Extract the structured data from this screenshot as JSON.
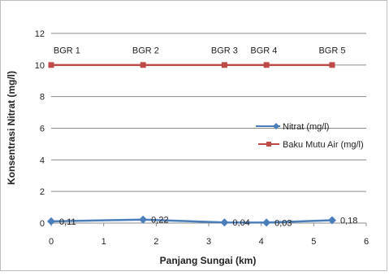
{
  "chart_data": {
    "type": "line",
    "xlabel": "Panjang Sungai (km)",
    "ylabel": "Konsentrasi Nitrat (mg/l)",
    "xlim": [
      0,
      6
    ],
    "ylim": [
      0,
      12
    ],
    "x_ticks": [
      "0",
      "1",
      "2",
      "3",
      "4",
      "5",
      "6"
    ],
    "y_ticks": [
      "0",
      "2",
      "4",
      "6",
      "8",
      "10",
      "12"
    ],
    "grid": "horizontal",
    "legend_position": "right",
    "series": [
      {
        "name": "Nitrat (mg/l)",
        "color": "#4a7ebb",
        "marker": "diamond",
        "x": [
          0,
          1.75,
          3.3,
          4.1,
          5.35
        ],
        "y": [
          0.11,
          0.22,
          0.04,
          0.03,
          0.18
        ],
        "labels": [
          "0,11",
          "0,22",
          "0,04",
          "0,03",
          "0,18"
        ]
      },
      {
        "name": "Baku Mutu Air (mg/l)",
        "color": "#be4b48",
        "marker": "square",
        "x": [
          0,
          1.75,
          3.3,
          4.1,
          5.35
        ],
        "y": [
          10,
          10,
          10,
          10,
          10
        ]
      }
    ],
    "annotations": [
      {
        "text": "BGR 1",
        "x": 0.3,
        "y": 11
      },
      {
        "text": "BGR 2",
        "x": 1.8,
        "y": 11
      },
      {
        "text": "BGR 3",
        "x": 3.3,
        "y": 11
      },
      {
        "text": "BGR 4",
        "x": 4.05,
        "y": 11
      },
      {
        "text": "BGR 5",
        "x": 5.35,
        "y": 11
      }
    ]
  }
}
